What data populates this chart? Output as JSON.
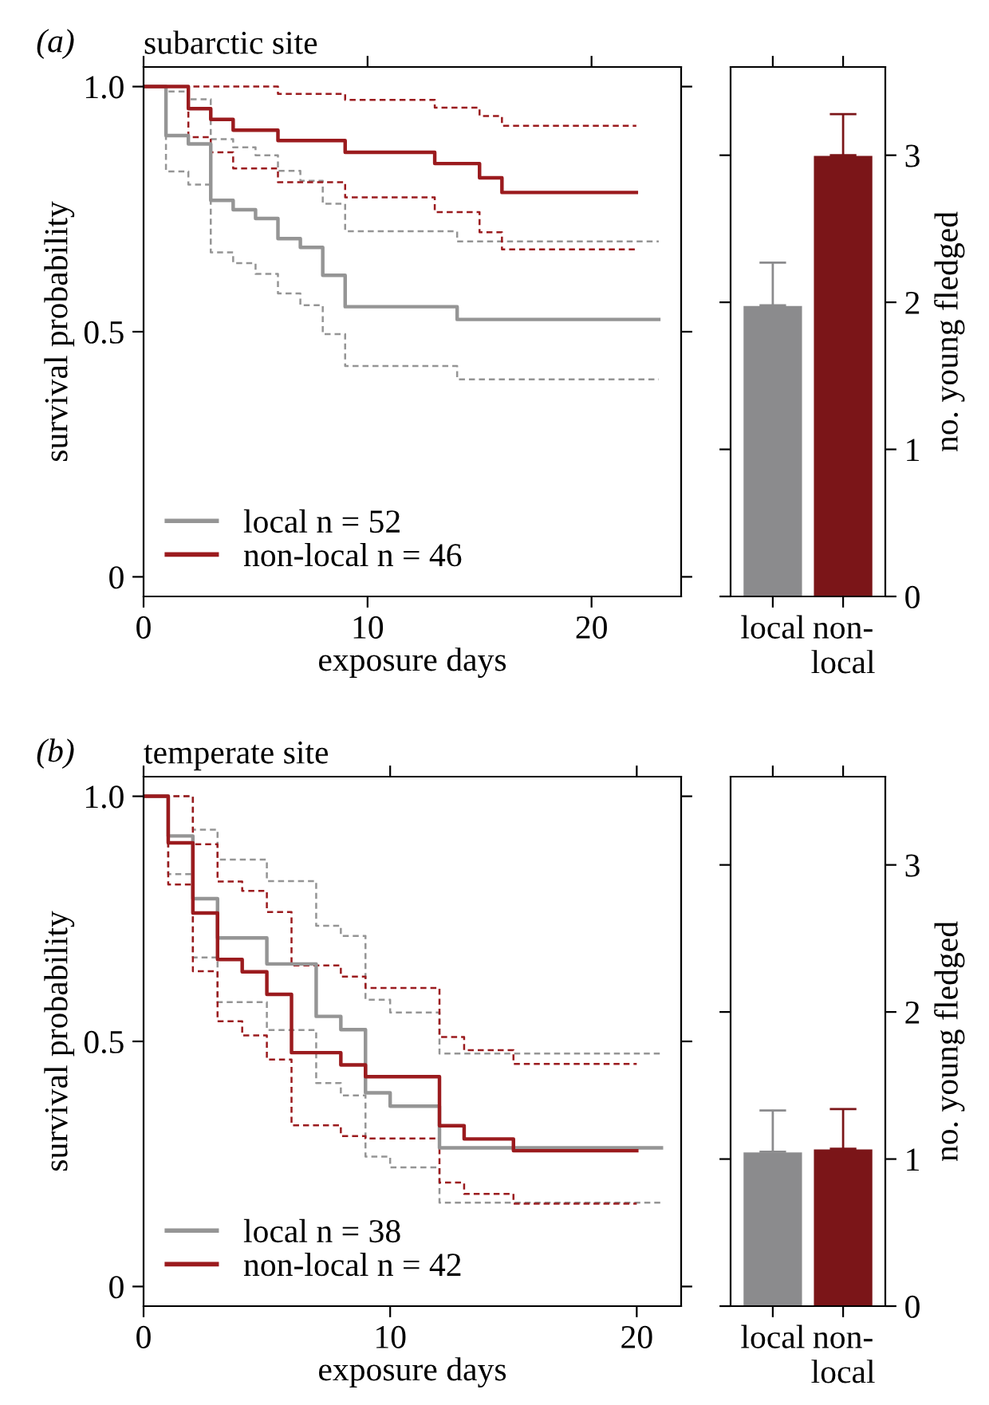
{
  "chart_data": [
    {
      "type": "step",
      "title": "subarctic site",
      "annotations": [
        "(a)"
      ],
      "xlabel": "exposure days",
      "ylabel": "survival probability",
      "xlim": [
        0,
        24
      ],
      "ylim": [
        -0.04,
        1.04
      ],
      "xticks": [
        0,
        10,
        20
      ],
      "yticks": [
        0,
        0.5,
        {
          "value": 1,
          "label": "1.0"
        }
      ],
      "legend": "bottom left",
      "series": [
        {
          "color": "#959595",
          "line_style": "dashed",
          "x": [
            0,
            1,
            2,
            3,
            4,
            5,
            6,
            7,
            8,
            9,
            14,
            23
          ],
          "values": [
            1.0,
            0.827,
            0.8,
            0.662,
            0.64,
            0.618,
            0.578,
            0.554,
            0.495,
            0.43,
            0.403,
            0.403
          ]
        },
        {
          "color": "#959595",
          "line_style": "dashed",
          "x": [
            0,
            1,
            2,
            3,
            4,
            5,
            6,
            7,
            8,
            9,
            14,
            23
          ],
          "values": [
            1.0,
            0.99,
            0.974,
            0.893,
            0.876,
            0.86,
            0.828,
            0.808,
            0.761,
            0.705,
            0.684,
            0.684
          ]
        },
        {
          "color": "#9b1b1e",
          "line_style": "dashed",
          "x": [
            0,
            2,
            3,
            4,
            6,
            9,
            13,
            15,
            16,
            22
          ],
          "values": [
            1.0,
            0.897,
            0.866,
            0.833,
            0.805,
            0.774,
            0.744,
            0.703,
            0.668,
            0.668
          ]
        },
        {
          "color": "#9b1b1e",
          "line_style": "dashed",
          "x": [
            0,
            2,
            3,
            4,
            6,
            9,
            13,
            15,
            16,
            22
          ],
          "values": [
            1.0,
            1.0,
            1.0,
            1.0,
            0.985,
            0.973,
            0.957,
            0.94,
            0.92,
            0.92
          ]
        },
        {
          "name": "local n = 52",
          "color": "#959595",
          "line_style": "solid",
          "x": [
            0,
            1,
            2,
            3,
            4,
            5,
            6,
            7,
            8,
            9,
            14,
            23
          ],
          "values": [
            1.0,
            0.9,
            0.883,
            0.768,
            0.749,
            0.731,
            0.69,
            0.672,
            0.615,
            0.551,
            0.525,
            0.525
          ]
        },
        {
          "name": "non-local n = 46",
          "color": "#9b1b1e",
          "line_style": "solid",
          "x": [
            0,
            2,
            3,
            4,
            6,
            9,
            13,
            15,
            16,
            22
          ],
          "values": [
            1.0,
            0.955,
            0.933,
            0.911,
            0.89,
            0.866,
            0.843,
            0.814,
            0.784,
            0.784
          ]
        }
      ]
    },
    {
      "type": "bar",
      "categories": [
        "local",
        "non-local"
      ],
      "values": [
        1.98,
        3.0
      ],
      "colors": [
        "#8b8b8d",
        "#7b1518"
      ],
      "errors": [
        [
          1.98,
          2.27
        ],
        [
          3.0,
          3.28
        ]
      ],
      "ylabel": "no. young fledged",
      "ylim": [
        0,
        3.6
      ],
      "yticks": [
        0,
        1,
        2,
        3
      ]
    },
    {
      "type": "step",
      "title": "temperate site",
      "annotations": [
        "(b)"
      ],
      "xlabel": "exposure days",
      "ylabel": "survival probability",
      "xlim": [
        0,
        21.8
      ],
      "ylim": [
        -0.04,
        1.04
      ],
      "xticks": [
        0,
        10,
        20
      ],
      "yticks": [
        0,
        0.5,
        {
          "value": 1,
          "label": "1.0"
        }
      ],
      "legend": "bottom left",
      "series": [
        {
          "color": "#959595",
          "line_style": "dashed",
          "x": [
            0,
            1,
            2,
            3,
            5,
            7,
            8,
            9,
            10,
            12,
            21
          ],
          "values": [
            1.0,
            0.841,
            0.671,
            0.58,
            0.523,
            0.415,
            0.39,
            0.265,
            0.243,
            0.171,
            0.171
          ]
        },
        {
          "color": "#959595",
          "line_style": "dashed",
          "x": [
            0,
            1,
            2,
            3,
            5,
            7,
            8,
            9,
            10,
            12,
            21
          ],
          "values": [
            1.0,
            1.0,
            0.932,
            0.871,
            0.827,
            0.736,
            0.715,
            0.585,
            0.559,
            0.475,
            0.475
          ]
        },
        {
          "color": "#9b1b1e",
          "line_style": "dashed",
          "x": [
            0,
            1,
            2,
            3,
            4,
            5,
            6,
            8,
            9,
            12,
            13,
            15,
            20
          ],
          "values": [
            1.0,
            0.82,
            0.643,
            0.541,
            0.512,
            0.463,
            0.329,
            0.307,
            0.302,
            0.212,
            0.189,
            0.169,
            0.169
          ]
        },
        {
          "color": "#9b1b1e",
          "line_style": "dashed",
          "x": [
            0,
            1,
            2,
            3,
            4,
            5,
            6,
            8,
            9,
            12,
            13,
            15,
            20
          ],
          "values": [
            1.0,
            1.0,
            0.902,
            0.826,
            0.807,
            0.764,
            0.655,
            0.632,
            0.609,
            0.509,
            0.482,
            0.454,
            0.454
          ]
        },
        {
          "name": "local n = 38",
          "color": "#959595",
          "line_style": "solid",
          "x": [
            0,
            1,
            2,
            3,
            5,
            7,
            8,
            9,
            10,
            12,
            21
          ],
          "values": [
            1.0,
            0.919,
            0.791,
            0.711,
            0.658,
            0.551,
            0.524,
            0.395,
            0.368,
            0.283,
            0.283
          ]
        },
        {
          "name": "non-local n = 42",
          "color": "#9b1b1e",
          "line_style": "solid",
          "x": [
            0,
            1,
            2,
            3,
            4,
            5,
            6,
            8,
            9,
            12,
            13,
            15,
            20
          ],
          "values": [
            1.0,
            0.905,
            0.762,
            0.667,
            0.642,
            0.596,
            0.477,
            0.452,
            0.428,
            0.328,
            0.301,
            0.277,
            0.277
          ]
        }
      ]
    },
    {
      "type": "bar",
      "categories": [
        "local",
        "non-local"
      ],
      "values": [
        1.05,
        1.07
      ],
      "colors": [
        "#8b8b8d",
        "#7b1518"
      ],
      "errors": [
        [
          1.05,
          1.33
        ],
        [
          1.07,
          1.34
        ]
      ],
      "ylabel": "no. young fledged",
      "ylim": [
        0,
        3.6
      ],
      "yticks": [
        0,
        1,
        2,
        3
      ]
    }
  ]
}
